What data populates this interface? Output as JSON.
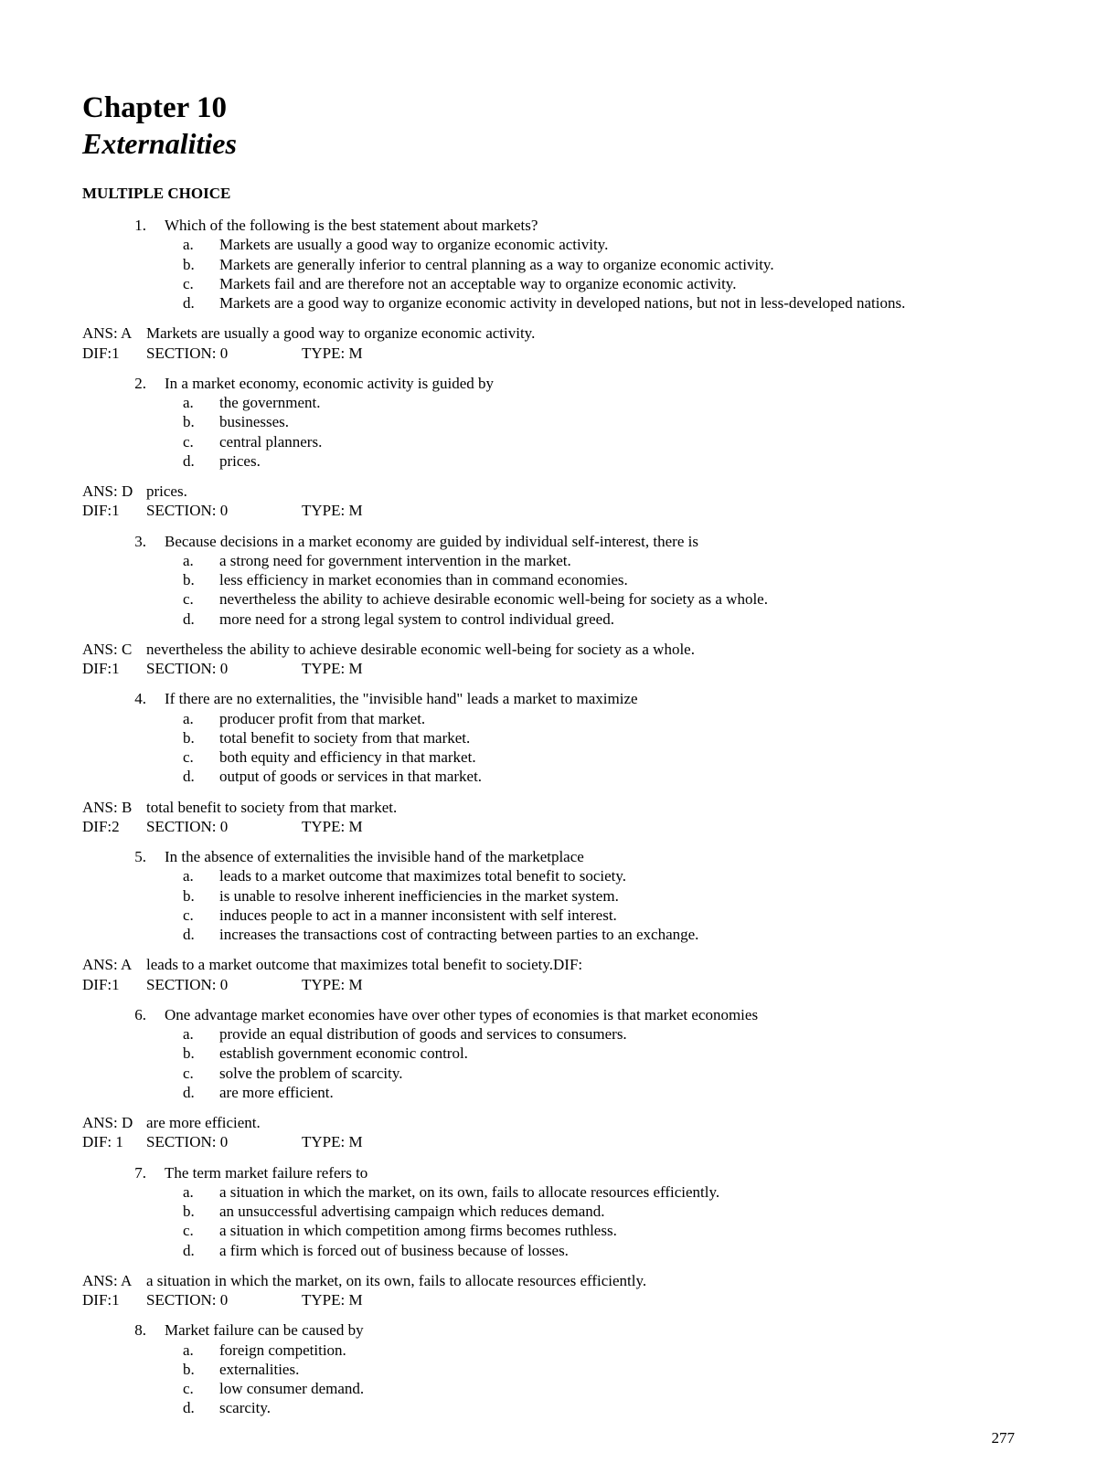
{
  "background_color": "#ffffff",
  "text_color": "#000000",
  "font_family": "Times New Roman",
  "chapter_title": "Chapter 10",
  "subtitle": "Externalities",
  "section_heading": "MULTIPLE CHOICE",
  "page_number": "277",
  "questions": [
    {
      "num": "1.",
      "text": "Which of the following is the best statement about markets?",
      "options": [
        {
          "l": "a.",
          "t": "Markets are usually a good way to organize economic activity."
        },
        {
          "l": "b.",
          "t": "Markets are generally inferior to central planning as a way to organize economic activity."
        },
        {
          "l": "c.",
          "t": "Markets fail and are therefore not an acceptable way to organize economic activity."
        },
        {
          "l": "d.",
          "t": "Markets are a good way to organize economic activity in developed nations, but not in less-developed nations."
        }
      ],
      "ans_label": "ANS: A",
      "ans_text": "Markets are usually a good way to organize economic activity.",
      "dif": "DIF:1",
      "section": "SECTION: 0",
      "type": "TYPE: M"
    },
    {
      "num": "2.",
      "text": "In a market economy, economic activity is guided by",
      "options": [
        {
          "l": "a.",
          "t": "the government."
        },
        {
          "l": "b.",
          "t": "businesses."
        },
        {
          "l": "c.",
          "t": "central planners."
        },
        {
          "l": "d.",
          "t": "prices."
        }
      ],
      "ans_label": "ANS: D",
      "ans_text": "prices.",
      "dif": "DIF:1",
      "section": "SECTION: 0",
      "type": "TYPE: M"
    },
    {
      "num": "3.",
      "text": "Because decisions in a market economy are guided by individual self-interest, there is",
      "options": [
        {
          "l": "a.",
          "t": "a strong need for government intervention in the market."
        },
        {
          "l": "b.",
          "t": "less efficiency in market economies than in command economies."
        },
        {
          "l": "c.",
          "t": "nevertheless the ability to achieve desirable economic well-being for society as a whole."
        },
        {
          "l": "d.",
          "t": "more need for a strong legal system to control individual greed."
        }
      ],
      "ans_label": "ANS: C",
      "ans_text": "nevertheless the ability to achieve desirable economic well-being for society as a whole.",
      "dif": "DIF:1",
      "section": "SECTION: 0",
      "type": "TYPE: M"
    },
    {
      "num": "4.",
      "text": "If there are no externalities, the \"invisible hand\" leads a market to maximize",
      "options": [
        {
          "l": "a.",
          "t": "producer profit from that market."
        },
        {
          "l": "b.",
          "t": "total benefit to society from that market."
        },
        {
          "l": "c.",
          "t": "both equity and efficiency in that market."
        },
        {
          "l": "d.",
          "t": "output of goods or services in that market."
        }
      ],
      "ans_label": "ANS: B",
      "ans_text": "total benefit to society from that market.",
      "dif": "DIF:2",
      "section": "SECTION: 0",
      "type": "TYPE: M"
    },
    {
      "num": "5.",
      "text": "In the absence of externalities the invisible hand of the marketplace",
      "options": [
        {
          "l": "a.",
          "t": "leads to a market outcome that maximizes total benefit to society."
        },
        {
          "l": "b.",
          "t": "is unable to resolve inherent inefficiencies in the market system."
        },
        {
          "l": "c.",
          "t": "induces people to act in a manner inconsistent with self interest."
        },
        {
          "l": "d.",
          "t": "increases the transactions cost of contracting between parties to an exchange."
        }
      ],
      "ans_label": "ANS: A",
      "ans_text": "leads to a market outcome that maximizes total benefit to society.DIF:",
      "dif": "DIF:1",
      "section": "SECTION: 0",
      "type": "TYPE: M"
    },
    {
      "num": "6.",
      "text": "One advantage market economies have over other types of economies is that market economies",
      "options": [
        {
          "l": "a.",
          "t": "provide an equal distribution of goods and services to consumers."
        },
        {
          "l": "b.",
          "t": "establish government economic control."
        },
        {
          "l": "c.",
          "t": "solve the problem of scarcity."
        },
        {
          "l": "d.",
          "t": "are more efficient."
        }
      ],
      "ans_label": "ANS: D",
      "ans_text": "are more efficient.",
      "dif": "DIF: 1",
      "section": "SECTION: 0",
      "type": "TYPE: M"
    },
    {
      "num": "7.",
      "text": "The term market failure refers to",
      "options": [
        {
          "l": "a.",
          "t": "a situation in which the market, on its own, fails to allocate resources efficiently."
        },
        {
          "l": "b.",
          "t": "an unsuccessful advertising campaign which reduces demand."
        },
        {
          "l": "c.",
          "t": "a situation in which competition among firms becomes ruthless."
        },
        {
          "l": "d.",
          "t": "a firm which is forced out of business because of losses."
        }
      ],
      "ans_label": "ANS: A",
      "ans_text": "a situation in which the market, on its own, fails to allocate resources efficiently.",
      "dif": "DIF:1",
      "section": "SECTION: 0",
      "type": "TYPE: M"
    },
    {
      "num": "8.",
      "text": "Market failure can be caused by",
      "options": [
        {
          "l": "a.",
          "t": "foreign competition."
        },
        {
          "l": "b.",
          "t": "externalities."
        },
        {
          "l": "c.",
          "t": "low consumer demand."
        },
        {
          "l": "d.",
          "t": "scarcity."
        }
      ],
      "ans_label": "",
      "ans_text": "",
      "dif": "",
      "section": "",
      "type": ""
    }
  ]
}
